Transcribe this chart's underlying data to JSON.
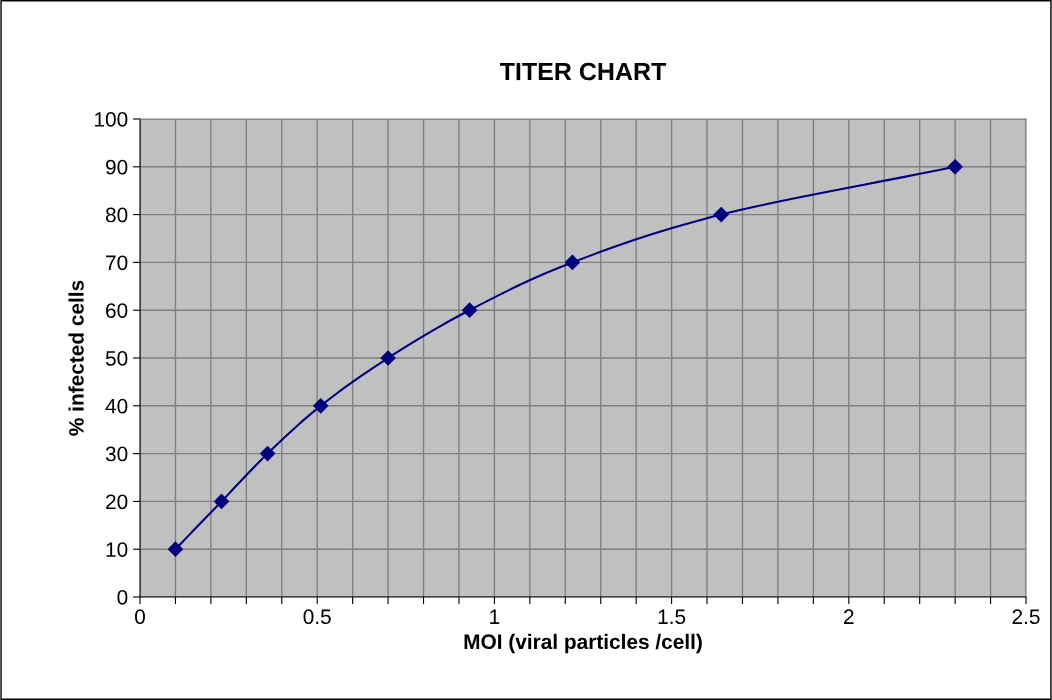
{
  "chart_data": {
    "type": "line",
    "title": "TITER CHART",
    "xlabel": "MOI (viral particles /cell)",
    "ylabel": "% infected cells",
    "x": [
      0.1,
      0.23,
      0.36,
      0.51,
      0.7,
      0.93,
      1.22,
      1.64,
      2.3
    ],
    "series": [
      {
        "color": "#000080",
        "values": [
          10,
          20,
          30,
          40,
          50,
          60,
          70,
          80,
          90
        ]
      }
    ],
    "xlim": [
      0,
      2.5
    ],
    "xticks": [
      0,
      {
        "value": 0.1,
        "label": null
      },
      {
        "value": 0.2,
        "label": null
      },
      {
        "value": 0.3,
        "label": null
      },
      {
        "value": 0.4,
        "label": null
      },
      0.5,
      {
        "value": 0.6,
        "label": null
      },
      {
        "value": 0.7,
        "label": null
      },
      {
        "value": 0.8,
        "label": null
      },
      {
        "value": 0.9,
        "label": null
      },
      1,
      {
        "value": 1.1,
        "label": null
      },
      {
        "value": 1.2,
        "label": null
      },
      {
        "value": 1.3,
        "label": null
      },
      {
        "value": 1.4,
        "label": null
      },
      1.5,
      {
        "value": 1.6,
        "label": null
      },
      {
        "value": 1.7,
        "label": null
      },
      {
        "value": 1.8,
        "label": null
      },
      {
        "value": 1.9,
        "label": null
      },
      2,
      {
        "value": 2.1,
        "label": null
      },
      {
        "value": 2.2,
        "label": null
      },
      {
        "value": 2.3,
        "label": null
      },
      {
        "value": 2.4,
        "label": null
      },
      2.5
    ],
    "ylim": [
      0,
      100
    ],
    "yticks": [
      0,
      10,
      20,
      30,
      40,
      50,
      60,
      70,
      80,
      90,
      100
    ],
    "grid": true,
    "marker": "diamond",
    "line_style": "solid"
  }
}
